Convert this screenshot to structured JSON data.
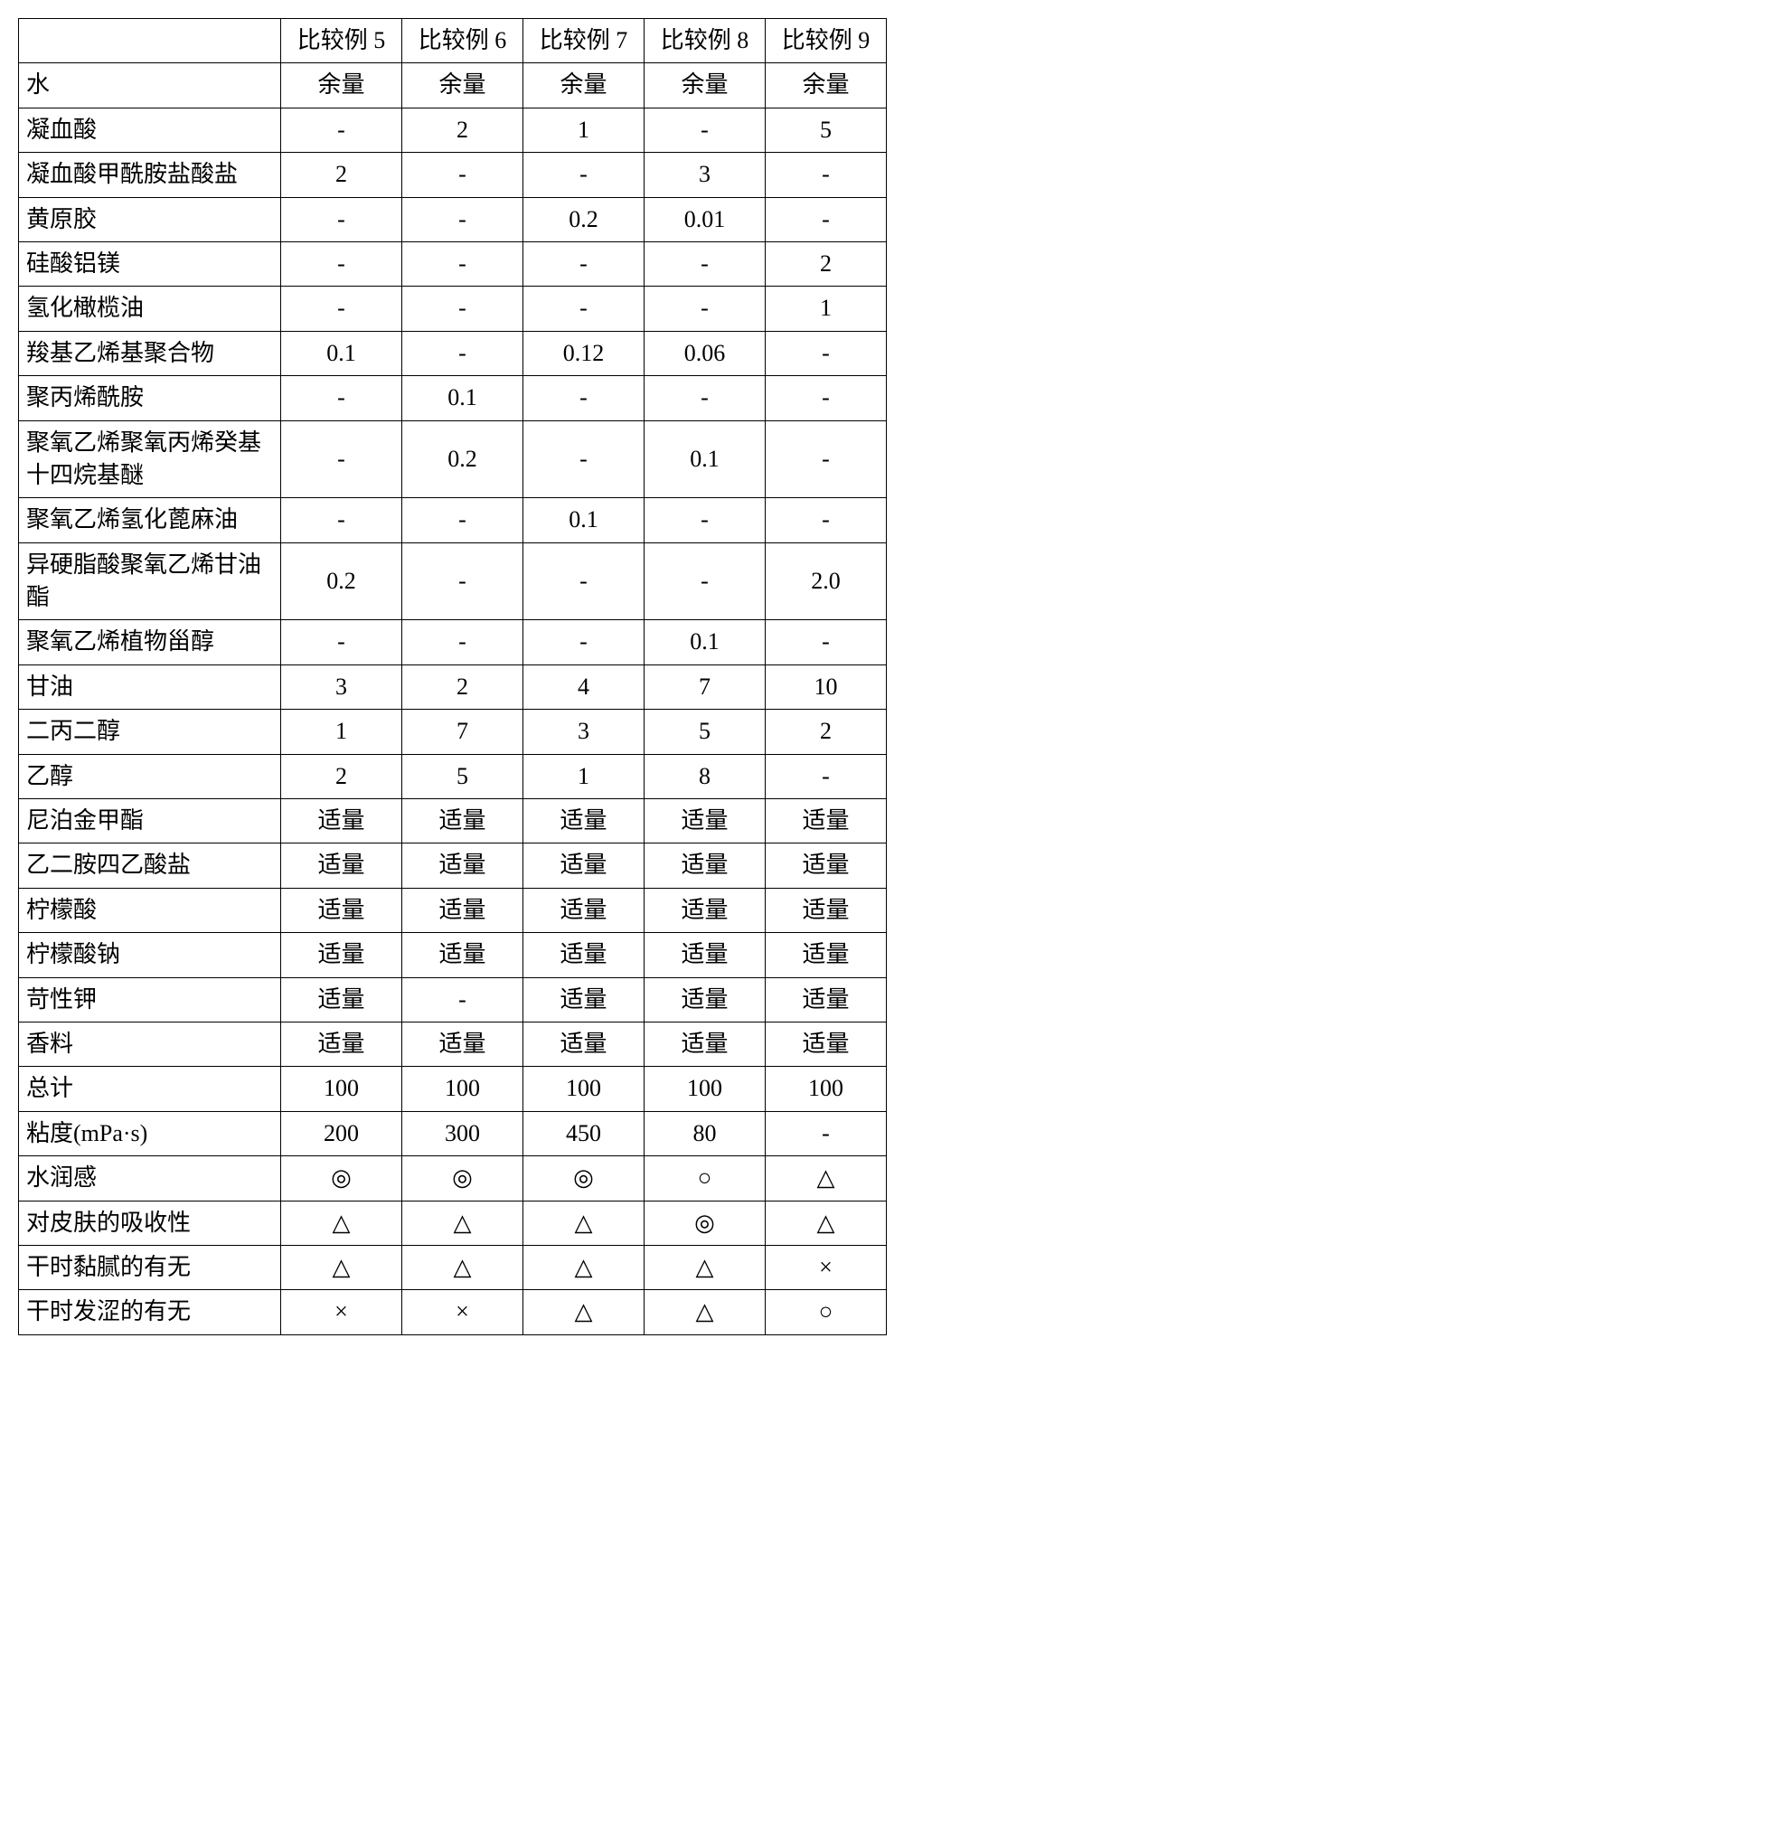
{
  "table": {
    "columns": [
      "",
      "比较例 5",
      "比较例 6",
      "比较例 7",
      "比较例 8",
      "比较例 9"
    ],
    "rows": [
      [
        "水",
        "余量",
        "余量",
        "余量",
        "余量",
        "余量"
      ],
      [
        "凝血酸",
        "-",
        "2",
        "1",
        "-",
        "5"
      ],
      [
        "凝血酸甲酰胺盐酸盐",
        "2",
        "-",
        "-",
        "3",
        "-"
      ],
      [
        "黄原胶",
        "-",
        "-",
        "0.2",
        "0.01",
        "-"
      ],
      [
        "硅酸铝镁",
        "-",
        "-",
        "-",
        "-",
        "2"
      ],
      [
        "氢化橄榄油",
        "-",
        "-",
        "-",
        "-",
        "1"
      ],
      [
        "羧基乙烯基聚合物",
        "0.1",
        "-",
        "0.12",
        "0.06",
        "-"
      ],
      [
        "聚丙烯酰胺",
        "-",
        "0.1",
        "-",
        "-",
        "-"
      ],
      [
        "聚氧乙烯聚氧丙烯癸基十四烷基醚",
        "-",
        "0.2",
        "-",
        "0.1",
        "-"
      ],
      [
        "聚氧乙烯氢化蓖麻油",
        "-",
        "-",
        "0.1",
        "-",
        "-"
      ],
      [
        "异硬脂酸聚氧乙烯甘油酯",
        "0.2",
        "-",
        "-",
        "-",
        "2.0"
      ],
      [
        "聚氧乙烯植物甾醇",
        "-",
        "-",
        "-",
        "0.1",
        "-"
      ],
      [
        "甘油",
        "3",
        "2",
        "4",
        "7",
        "10"
      ],
      [
        "二丙二醇",
        "1",
        "7",
        "3",
        "5",
        "2"
      ],
      [
        "乙醇",
        "2",
        "5",
        "1",
        "8",
        "-"
      ],
      [
        "尼泊金甲酯",
        "适量",
        "适量",
        "适量",
        "适量",
        "适量"
      ],
      [
        "乙二胺四乙酸盐",
        "适量",
        "适量",
        "适量",
        "适量",
        "适量"
      ],
      [
        "柠檬酸",
        "适量",
        "适量",
        "适量",
        "适量",
        "适量"
      ],
      [
        "柠檬酸钠",
        "适量",
        "适量",
        "适量",
        "适量",
        "适量"
      ],
      [
        "苛性钾",
        "适量",
        "-",
        "适量",
        "适量",
        "适量"
      ],
      [
        "香料",
        "适量",
        "适量",
        "适量",
        "适量",
        "适量"
      ],
      [
        "总计",
        "100",
        "100",
        "100",
        "100",
        "100"
      ],
      [
        "粘度(mPa·s)",
        "200",
        "300",
        "450",
        "80",
        "-"
      ],
      [
        "水润感",
        "◎",
        "◎",
        "◎",
        "○",
        "△"
      ],
      [
        "对皮肤的吸收性",
        "△",
        "△",
        "△",
        "◎",
        "△"
      ],
      [
        "干时黏腻的有无",
        "△",
        "△",
        "△",
        "△",
        "×"
      ],
      [
        "干时发涩的有无",
        "×",
        "×",
        "△",
        "△",
        "○"
      ]
    ]
  }
}
